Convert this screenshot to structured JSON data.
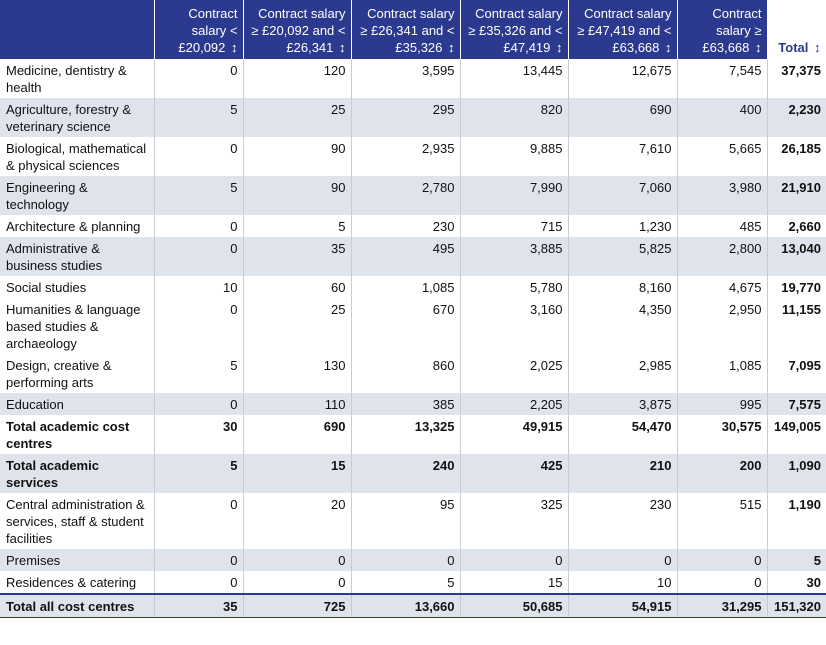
{
  "chart_data": {
    "type": "table",
    "columns": [
      "",
      "Contract salary < £20,092",
      "Contract salary ≥ £20,092 and < £26,341",
      "Contract salary ≥ £26,341 and < £35,326",
      "Contract salary ≥ £35,326 and < £47,419",
      "Contract salary ≥ £47,419 and < £63,668",
      "Contract salary ≥ £63,668",
      "Total"
    ],
    "rows": [
      {
        "label": "Medicine, dentistry & health",
        "values": [
          "0",
          "120",
          "3,595",
          "13,445",
          "12,675",
          "7,545"
        ],
        "total": "37,375"
      },
      {
        "label": "Agriculture, forestry & veterinary science",
        "values": [
          "5",
          "25",
          "295",
          "820",
          "690",
          "400"
        ],
        "total": "2,230"
      },
      {
        "label": "Biological, mathematical & physical sciences",
        "values": [
          "0",
          "90",
          "2,935",
          "9,885",
          "7,610",
          "5,665"
        ],
        "total": "26,185"
      },
      {
        "label": "Engineering & technology",
        "values": [
          "5",
          "90",
          "2,780",
          "7,990",
          "7,060",
          "3,980"
        ],
        "total": "21,910"
      },
      {
        "label": "Architecture & planning",
        "values": [
          "0",
          "5",
          "230",
          "715",
          "1,230",
          "485"
        ],
        "total": "2,660"
      },
      {
        "label": "Administrative & business studies",
        "values": [
          "0",
          "35",
          "495",
          "3,885",
          "5,825",
          "2,800"
        ],
        "total": "13,040"
      },
      {
        "label": "Social studies",
        "values": [
          "10",
          "60",
          "1,085",
          "5,780",
          "8,160",
          "4,675"
        ],
        "total": "19,770"
      },
      {
        "label": "Humanities & language based studies & archaeology",
        "values": [
          "0",
          "25",
          "670",
          "3,160",
          "4,350",
          "2,950"
        ],
        "total": "11,155"
      },
      {
        "label": "Design, creative & performing arts",
        "values": [
          "5",
          "130",
          "860",
          "2,025",
          "2,985",
          "1,085"
        ],
        "total": "7,095"
      },
      {
        "label": "Education",
        "values": [
          "0",
          "110",
          "385",
          "2,205",
          "3,875",
          "995"
        ],
        "total": "7,575"
      },
      {
        "label": "Total academic cost centres",
        "values": [
          "30",
          "690",
          "13,325",
          "49,915",
          "54,470",
          "30,575"
        ],
        "total": "149,005"
      },
      {
        "label": "Total academic services",
        "values": [
          "5",
          "15",
          "240",
          "425",
          "210",
          "200"
        ],
        "total": "1,090"
      },
      {
        "label": "Central administration & services, staff & student facilities",
        "values": [
          "0",
          "20",
          "95",
          "325",
          "230",
          "515"
        ],
        "total": "1,190"
      },
      {
        "label": "Premises",
        "values": [
          "0",
          "0",
          "0",
          "0",
          "0",
          "0"
        ],
        "total": "5"
      },
      {
        "label": "Residences & catering",
        "values": [
          "0",
          "0",
          "5",
          "15",
          "10",
          "0"
        ],
        "total": "30"
      },
      {
        "label": "Total all cost centres",
        "values": [
          "35",
          "725",
          "13,660",
          "50,685",
          "54,915",
          "31,295"
        ],
        "total": "151,320"
      }
    ]
  },
  "sort_icon": "↕",
  "colors": {
    "header_bg": "#2b3a8f",
    "stripe_bg": "#dfe3ec"
  }
}
